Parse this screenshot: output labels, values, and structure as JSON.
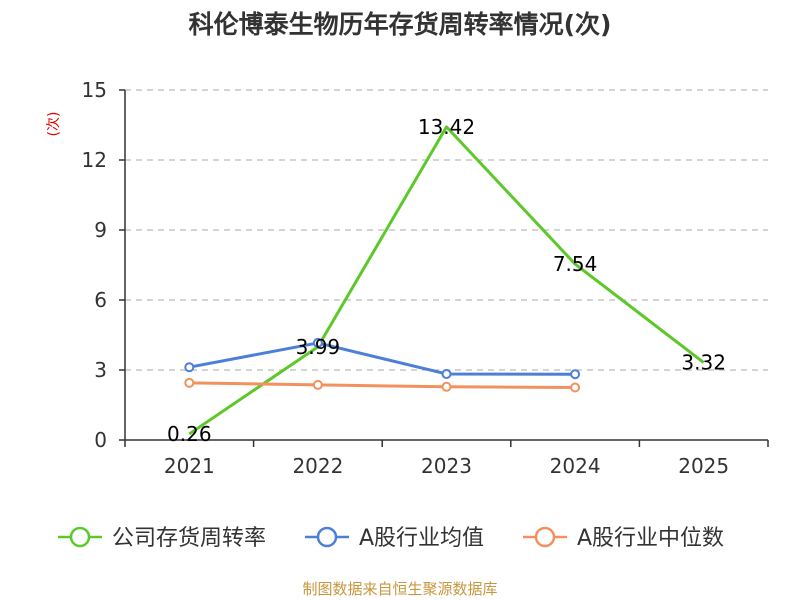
{
  "chart_data": {
    "type": "line",
    "title": "科伦博泰生物历年存货周转率情况(次)",
    "ylabel": "(次)",
    "categories": [
      "2021",
      "2022",
      "2023",
      "2024",
      "2025"
    ],
    "ylim": [
      0,
      15
    ],
    "yticks": [
      0,
      3,
      6,
      9,
      12,
      15
    ],
    "grid": true,
    "legend_position": "bottom",
    "series": [
      {
        "name": "公司存货周转率",
        "color": "#5cc82a",
        "values": [
          0.26,
          3.99,
          13.42,
          7.54,
          3.32
        ],
        "labels": [
          "0.26",
          "3.99",
          "13.42",
          "7.54",
          "3.32"
        ],
        "markers": false
      },
      {
        "name": "A股行业均值",
        "color": "#4c7fd8",
        "values": [
          3.12,
          4.16,
          2.83,
          2.82,
          null
        ],
        "markers": true
      },
      {
        "name": "A股行业中位数",
        "color": "#f3915e",
        "values": [
          2.45,
          2.36,
          2.28,
          2.25,
          null
        ],
        "markers": true
      }
    ],
    "source": "制图数据来自恒生聚源数据库"
  }
}
